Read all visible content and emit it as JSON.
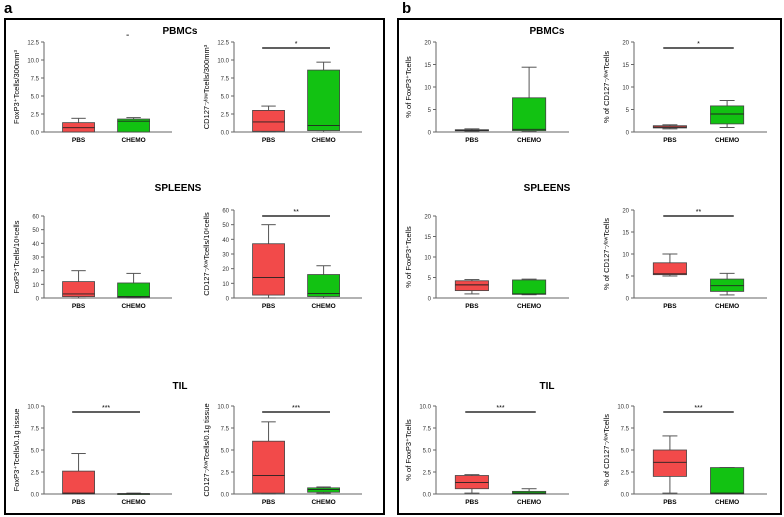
{
  "colors": {
    "pbs": "#f24a4a",
    "chemo": "#12c212",
    "axis": "#666666",
    "border": "#000000"
  },
  "panels": [
    {
      "letter": "a",
      "sections": [
        "PBMCs",
        "SPLEENS",
        "TIL"
      ],
      "stray_mark": "-"
    },
    {
      "letter": "b",
      "sections": [
        "PBMCs",
        "SPLEENS",
        "TIL"
      ]
    }
  ],
  "chart_data": [
    {
      "id": "a-pbmc-foxp3",
      "type": "box",
      "panel": "a",
      "section": "PBMCs",
      "categories": [
        "PBS",
        "CHEMO"
      ],
      "ylabel": "FoxP3⁺Tcells/300mm³",
      "yticks": [
        "0.0",
        "2.5",
        "5.0",
        "7.5",
        "10.0",
        "12.5"
      ],
      "ylim": [
        0,
        12.5
      ],
      "boxes": [
        {
          "whisker_low": 0,
          "q1": 0,
          "median": 0.6,
          "q3": 1.3,
          "whisker_high": 1.9
        },
        {
          "whisker_low": 0,
          "q1": 0,
          "median": 1.5,
          "q3": 1.8,
          "whisker_high": 2.0
        }
      ],
      "significance": ""
    },
    {
      "id": "a-pbmc-cd127",
      "type": "box",
      "panel": "a",
      "section": "PBMCs",
      "categories": [
        "PBS",
        "CHEMO"
      ],
      "ylabel": "CD127⁻⁄ˡᵒʷTcells/300mm³",
      "yticks": [
        "0.0",
        "2.5",
        "5.0",
        "7.5",
        "10.0",
        "12.5"
      ],
      "ylim": [
        0,
        12.5
      ],
      "boxes": [
        {
          "whisker_low": 0,
          "q1": 0.1,
          "median": 1.4,
          "q3": 3.0,
          "whisker_high": 3.6
        },
        {
          "whisker_low": 0,
          "q1": 0.2,
          "median": 0.9,
          "q3": 8.6,
          "whisker_high": 9.7
        }
      ],
      "significance": "*"
    },
    {
      "id": "b-pbmc-foxp3",
      "type": "box",
      "panel": "b",
      "section": "PBMCs",
      "categories": [
        "PBS",
        "CHEMO"
      ],
      "ylabel": "% of FoxP3⁺Tcells",
      "yticks": [
        "0",
        "5",
        "10",
        "15",
        "20"
      ],
      "ylim": [
        0,
        20
      ],
      "boxes": [
        {
          "whisker_low": 0.2,
          "q1": 0.3,
          "median": 0.4,
          "q3": 0.5,
          "whisker_high": 0.7
        },
        {
          "whisker_low": 0.1,
          "q1": 0.3,
          "median": 0.6,
          "q3": 7.6,
          "whisker_high": 14.4
        }
      ],
      "significance": ""
    },
    {
      "id": "b-pbmc-cd127",
      "type": "box",
      "panel": "b",
      "section": "PBMCs",
      "categories": [
        "PBS",
        "CHEMO"
      ],
      "ylabel": "% of CD127⁻⁄ˡᵒʷTcells",
      "yticks": [
        "0",
        "5",
        "10",
        "15",
        "20"
      ],
      "ylim": [
        0,
        20
      ],
      "boxes": [
        {
          "whisker_low": 0.7,
          "q1": 0.9,
          "median": 1.1,
          "q3": 1.4,
          "whisker_high": 1.6
        },
        {
          "whisker_low": 1.0,
          "q1": 1.8,
          "median": 4.0,
          "q3": 5.8,
          "whisker_high": 7.0
        }
      ],
      "significance": "*"
    },
    {
      "id": "a-spleen-foxp3",
      "type": "box",
      "panel": "a",
      "section": "SPLEENS",
      "categories": [
        "PBS",
        "CHEMO"
      ],
      "ylabel": "FoxP3⁺Tcells/10⁶cells",
      "yticks": [
        "0",
        "10",
        "20",
        "30",
        "40",
        "50",
        "60"
      ],
      "ylim": [
        0,
        60
      ],
      "boxes": [
        {
          "whisker_low": 0,
          "q1": 1,
          "median": 3,
          "q3": 12,
          "whisker_high": 20
        },
        {
          "whisker_low": 0,
          "q1": 0.5,
          "median": 1,
          "q3": 11,
          "whisker_high": 18
        }
      ],
      "significance": ""
    },
    {
      "id": "a-spleen-cd127",
      "type": "box",
      "panel": "a",
      "section": "SPLEENS",
      "categories": [
        "PBS",
        "CHEMO"
      ],
      "ylabel": "CD127⁻⁄ˡᵒʷTcells/10⁶cells",
      "yticks": [
        "0",
        "10",
        "20",
        "30",
        "40",
        "50",
        "60"
      ],
      "ylim": [
        0,
        60
      ],
      "boxes": [
        {
          "whisker_low": 0,
          "q1": 2,
          "median": 14,
          "q3": 37,
          "whisker_high": 50
        },
        {
          "whisker_low": 0,
          "q1": 1,
          "median": 3,
          "q3": 16,
          "whisker_high": 22
        }
      ],
      "significance": "**"
    },
    {
      "id": "b-spleen-foxp3",
      "type": "box",
      "panel": "b",
      "section": "SPLEENS",
      "categories": [
        "PBS",
        "CHEMO"
      ],
      "ylabel": "% of FoxP3⁺Tcells",
      "yticks": [
        "0",
        "5",
        "10",
        "15",
        "20"
      ],
      "ylim": [
        0,
        20
      ],
      "boxes": [
        {
          "whisker_low": 1.0,
          "q1": 1.8,
          "median": 3.2,
          "q3": 4.2,
          "whisker_high": 4.5
        },
        {
          "whisker_low": 0.8,
          "q1": 0.9,
          "median": 1.0,
          "q3": 4.4,
          "whisker_high": 4.6
        }
      ],
      "significance": ""
    },
    {
      "id": "b-spleen-cd127",
      "type": "box",
      "panel": "b",
      "section": "SPLEENS",
      "categories": [
        "PBS",
        "CHEMO"
      ],
      "ylabel": "% of CD127⁻⁄ˡᵒʷTcells",
      "yticks": [
        "0",
        "5",
        "10",
        "15",
        "20"
      ],
      "ylim": [
        0,
        20
      ],
      "boxes": [
        {
          "whisker_low": 5.0,
          "q1": 5.3,
          "median": 5.5,
          "q3": 8.0,
          "whisker_high": 10.0
        },
        {
          "whisker_low": 0.7,
          "q1": 1.5,
          "median": 2.8,
          "q3": 4.3,
          "whisker_high": 5.6
        }
      ],
      "significance": "**"
    },
    {
      "id": "a-til-foxp3",
      "type": "box",
      "panel": "a",
      "section": "TIL",
      "categories": [
        "PBS",
        "CHEMO"
      ],
      "ylabel": "FoxP3⁺Tcells/0.1g tissue",
      "yticks": [
        "0.0",
        "2.5",
        "5.0",
        "7.5",
        "10.0"
      ],
      "ylim": [
        0,
        10
      ],
      "boxes": [
        {
          "whisker_low": 0,
          "q1": 0,
          "median": 0.1,
          "q3": 2.6,
          "whisker_high": 4.6
        },
        {
          "whisker_low": 0,
          "q1": 0,
          "median": 0.02,
          "q3": 0.05,
          "whisker_high": 0.1
        }
      ],
      "significance": "***"
    },
    {
      "id": "a-til-cd127",
      "type": "box",
      "panel": "a",
      "section": "TIL",
      "categories": [
        "PBS",
        "CHEMO"
      ],
      "ylabel": "CD127⁻⁄ˡᵒʷTcells/0.1g tissue",
      "yticks": [
        "0.0",
        "2.5",
        "5.0",
        "7.5",
        "10.0"
      ],
      "ylim": [
        0,
        10
      ],
      "boxes": [
        {
          "whisker_low": 0,
          "q1": 0.1,
          "median": 2.1,
          "q3": 6.0,
          "whisker_high": 8.2
        },
        {
          "whisker_low": 0.1,
          "q1": 0.2,
          "median": 0.5,
          "q3": 0.7,
          "whisker_high": 0.8
        }
      ],
      "significance": "***"
    },
    {
      "id": "b-til-foxp3",
      "type": "box",
      "panel": "b",
      "section": "TIL",
      "categories": [
        "PBS",
        "CHEMO"
      ],
      "ylabel": "% of FoxP3⁺Tcells",
      "yticks": [
        "0.0",
        "2.5",
        "5.0",
        "7.5",
        "10.0"
      ],
      "ylim": [
        0,
        10
      ],
      "boxes": [
        {
          "whisker_low": 0.1,
          "q1": 0.6,
          "median": 1.3,
          "q3": 2.1,
          "whisker_high": 2.2
        },
        {
          "whisker_low": 0,
          "q1": 0,
          "median": 0.1,
          "q3": 0.3,
          "whisker_high": 0.6
        }
      ],
      "significance": "***"
    },
    {
      "id": "b-til-cd127",
      "type": "box",
      "panel": "b",
      "section": "TIL",
      "categories": [
        "PBS",
        "CHEMO"
      ],
      "ylabel": "% of CD127⁻⁄ˡᵒʷTcells",
      "yticks": [
        "0.0",
        "2.5",
        "5.0",
        "7.5",
        "10.0"
      ],
      "ylim": [
        0,
        10
      ],
      "boxes": [
        {
          "whisker_low": 0.1,
          "q1": 2.0,
          "median": 3.6,
          "q3": 5.0,
          "whisker_high": 6.6
        },
        {
          "whisker_low": 0,
          "q1": 0,
          "median": 0.1,
          "q3": 3.0,
          "whisker_high": 3.0
        }
      ],
      "significance": "***"
    }
  ]
}
